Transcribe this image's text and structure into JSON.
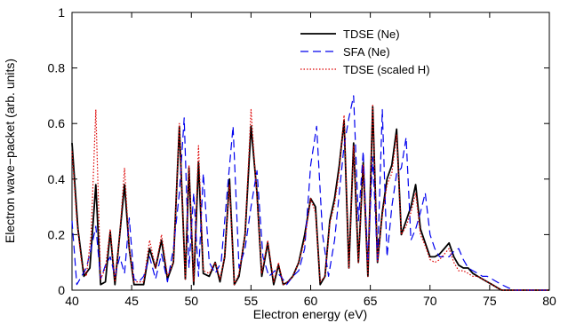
{
  "chart_data": {
    "type": "line",
    "xlabel": "Electron energy (eV)",
    "ylabel": "Electron wave−packet (arb. units)",
    "xlim": [
      40,
      80
    ],
    "ylim": [
      0,
      1
    ],
    "x_ticks": [
      "40",
      "45",
      "50",
      "55",
      "60",
      "65",
      "70",
      "75",
      "80"
    ],
    "y_ticks": [
      "0",
      "0.2",
      "0.4",
      "0.6",
      "0.8",
      "1"
    ],
    "grid": false,
    "legend_position": "top-right",
    "series": [
      {
        "name": "TDSE (Ne)",
        "color": "#000000",
        "style": "solid",
        "x": [
          40.0,
          40.5,
          41.0,
          41.5,
          42.0,
          42.4,
          42.8,
          43.2,
          43.6,
          44.0,
          44.4,
          44.8,
          45.2,
          45.6,
          46.0,
          46.5,
          47.0,
          47.5,
          48.0,
          48.5,
          49.0,
          49.5,
          49.8,
          50.2,
          50.6,
          51.0,
          51.5,
          52.0,
          52.4,
          52.8,
          53.2,
          53.6,
          54.0,
          54.5,
          55.0,
          55.5,
          55.9,
          56.4,
          56.9,
          57.3,
          57.7,
          58.1,
          58.5,
          59.0,
          59.5,
          60.0,
          60.4,
          60.8,
          61.2,
          61.6,
          62.0,
          62.4,
          62.8,
          63.2,
          63.6,
          64.0,
          64.4,
          64.8,
          65.2,
          65.6,
          66.0,
          66.4,
          66.8,
          67.2,
          67.6,
          68.0,
          68.4,
          68.8,
          69.2,
          69.6,
          70.0,
          70.4,
          70.8,
          71.2,
          71.6,
          72.0,
          72.4,
          72.8,
          73.2,
          73.6,
          74.0,
          74.4,
          74.8,
          75.2,
          75.6,
          76.0,
          76.5,
          77.0,
          77.5,
          78.0,
          78.5,
          79.0,
          79.5,
          80.0
        ],
        "y": [
          0.53,
          0.22,
          0.05,
          0.08,
          0.38,
          0.02,
          0.03,
          0.21,
          0.02,
          0.2,
          0.38,
          0.15,
          0.02,
          0.02,
          0.02,
          0.15,
          0.08,
          0.18,
          0.04,
          0.1,
          0.59,
          0.04,
          0.44,
          0.02,
          0.46,
          0.06,
          0.05,
          0.1,
          0.03,
          0.12,
          0.4,
          0.02,
          0.05,
          0.2,
          0.59,
          0.35,
          0.05,
          0.17,
          0.02,
          0.09,
          0.02,
          0.03,
          0.05,
          0.1,
          0.2,
          0.33,
          0.3,
          0.02,
          0.05,
          0.25,
          0.33,
          0.45,
          0.61,
          0.08,
          0.53,
          0.1,
          0.46,
          0.05,
          0.66,
          0.1,
          0.28,
          0.4,
          0.45,
          0.58,
          0.2,
          0.25,
          0.3,
          0.38,
          0.22,
          0.17,
          0.12,
          0.12,
          0.13,
          0.15,
          0.17,
          0.12,
          0.09,
          0.08,
          0.08,
          0.06,
          0.05,
          0.04,
          0.03,
          0.02,
          0.01,
          0.0,
          0.0,
          0.0,
          0.0,
          0.0,
          0.0,
          0.0,
          0.0,
          0.0
        ]
      },
      {
        "name": "SFA (Ne)",
        "color": "#0000ee",
        "style": "dashed",
        "x": [
          40.0,
          40.4,
          40.8,
          41.2,
          41.6,
          42.0,
          42.4,
          42.8,
          43.2,
          43.6,
          44.0,
          44.4,
          44.8,
          45.2,
          45.6,
          46.0,
          46.5,
          47.0,
          47.5,
          48.0,
          48.5,
          49.0,
          49.4,
          49.8,
          50.2,
          50.6,
          51.0,
          51.5,
          52.0,
          52.5,
          53.0,
          53.5,
          54.0,
          54.5,
          55.0,
          55.5,
          56.0,
          56.5,
          57.0,
          57.5,
          58.0,
          58.5,
          59.0,
          59.5,
          60.0,
          60.5,
          61.0,
          61.5,
          62.0,
          62.4,
          62.8,
          63.2,
          63.6,
          64.0,
          64.4,
          64.8,
          65.2,
          65.6,
          66.0,
          66.4,
          66.8,
          67.2,
          67.6,
          68.0,
          68.4,
          68.8,
          69.2,
          69.6,
          70.0,
          70.4,
          70.8,
          71.2,
          71.6,
          72.0,
          72.4,
          72.8,
          73.2,
          73.6,
          74.0,
          74.4,
          74.8,
          75.2,
          75.6,
          76.0,
          76.5,
          77.0,
          77.5,
          78.0,
          78.5,
          79.0,
          79.5,
          80.0
        ],
        "y": [
          0.25,
          0.02,
          0.05,
          0.08,
          0.15,
          0.23,
          0.04,
          0.09,
          0.12,
          0.05,
          0.12,
          0.06,
          0.26,
          0.04,
          0.03,
          0.05,
          0.12,
          0.04,
          0.13,
          0.03,
          0.15,
          0.35,
          0.62,
          0.08,
          0.35,
          0.05,
          0.42,
          0.1,
          0.06,
          0.1,
          0.35,
          0.59,
          0.08,
          0.15,
          0.3,
          0.43,
          0.12,
          0.05,
          0.07,
          0.05,
          0.02,
          0.05,
          0.07,
          0.15,
          0.45,
          0.59,
          0.2,
          0.05,
          0.18,
          0.35,
          0.52,
          0.62,
          0.7,
          0.25,
          0.5,
          0.1,
          0.48,
          0.1,
          0.65,
          0.12,
          0.3,
          0.42,
          0.44,
          0.55,
          0.18,
          0.22,
          0.28,
          0.35,
          0.2,
          0.15,
          0.12,
          0.12,
          0.12,
          0.14,
          0.15,
          0.11,
          0.08,
          0.07,
          0.06,
          0.05,
          0.05,
          0.04,
          0.03,
          0.02,
          0.01,
          0.0,
          0.0,
          0.0,
          0.0,
          0.0,
          0.0,
          0.0
        ]
      },
      {
        "name": "TDSE (scaled H)",
        "color": "#dd0000",
        "style": "dotted",
        "x": [
          40.0,
          40.4,
          40.8,
          41.2,
          41.6,
          42.0,
          42.4,
          42.8,
          43.2,
          43.6,
          44.0,
          44.4,
          44.8,
          45.2,
          45.6,
          46.0,
          46.5,
          47.0,
          47.5,
          48.0,
          48.5,
          49.0,
          49.5,
          49.8,
          50.2,
          50.6,
          51.0,
          51.5,
          52.0,
          52.4,
          52.8,
          53.2,
          53.6,
          54.0,
          54.5,
          55.0,
          55.5,
          55.9,
          56.4,
          56.9,
          57.3,
          57.7,
          58.1,
          58.5,
          59.0,
          59.5,
          60.0,
          60.4,
          60.8,
          61.2,
          61.6,
          62.0,
          62.4,
          62.8,
          63.2,
          63.6,
          64.0,
          64.4,
          64.8,
          65.2,
          65.6,
          66.0,
          66.4,
          66.8,
          67.2,
          67.6,
          68.0,
          68.4,
          68.8,
          69.2,
          69.6,
          70.0,
          70.4,
          70.8,
          71.2,
          71.6,
          72.0,
          72.4,
          72.8,
          73.2,
          73.6,
          74.0,
          74.4,
          74.8,
          75.2,
          75.6,
          76.0,
          76.5,
          77.0,
          77.5,
          78.0,
          78.5,
          79.0,
          79.5,
          80.0
        ],
        "y": [
          0.5,
          0.25,
          0.1,
          0.05,
          0.2,
          0.65,
          0.04,
          0.08,
          0.22,
          0.03,
          0.2,
          0.44,
          0.15,
          0.03,
          0.03,
          0.03,
          0.18,
          0.08,
          0.2,
          0.05,
          0.1,
          0.6,
          0.04,
          0.45,
          0.03,
          0.52,
          0.07,
          0.06,
          0.1,
          0.04,
          0.12,
          0.38,
          0.02,
          0.06,
          0.2,
          0.65,
          0.33,
          0.06,
          0.18,
          0.03,
          0.1,
          0.02,
          0.03,
          0.05,
          0.1,
          0.18,
          0.33,
          0.28,
          0.03,
          0.05,
          0.24,
          0.31,
          0.43,
          0.63,
          0.08,
          0.52,
          0.1,
          0.45,
          0.05,
          0.67,
          0.1,
          0.27,
          0.38,
          0.42,
          0.56,
          0.2,
          0.23,
          0.28,
          0.35,
          0.2,
          0.16,
          0.11,
          0.1,
          0.11,
          0.13,
          0.15,
          0.1,
          0.07,
          0.07,
          0.06,
          0.05,
          0.05,
          0.04,
          0.03,
          0.02,
          0.01,
          0.0,
          0.0,
          0.0,
          0.0,
          0.0,
          0.0,
          0.0,
          0.0,
          0.0
        ]
      }
    ]
  }
}
